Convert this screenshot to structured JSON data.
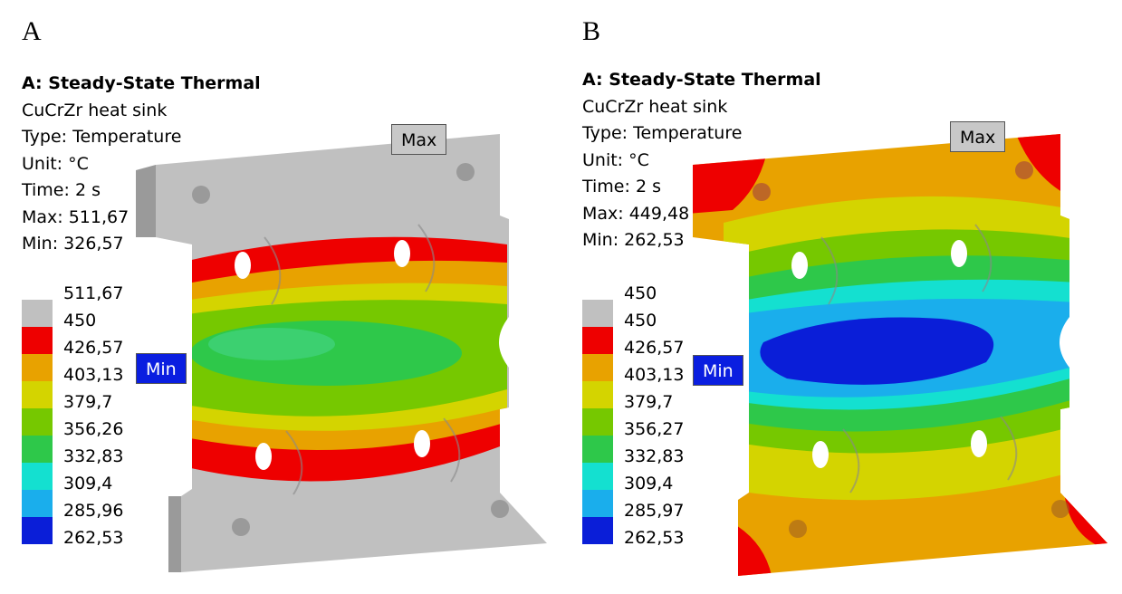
{
  "panels": [
    {
      "letter": "A",
      "title": "A: Steady-State Thermal",
      "body": "CuCrZr heat sink",
      "type": "Type: Temperature",
      "unit": "Unit: °C",
      "time": "Time: 2 s",
      "max": "Max: 511,67",
      "min": "Min: 326,57",
      "legend": [
        "511,67",
        "450",
        "426,57",
        "403,13",
        "379,7",
        "356,26",
        "332,83",
        "309,4",
        "285,96",
        "262,53"
      ],
      "max_tag": "Max",
      "min_tag": "Min"
    },
    {
      "letter": "B",
      "title": "A: Steady-State Thermal",
      "body": "CuCrZr heat sink",
      "type": "Type: Temperature",
      "unit": "Unit: °C",
      "time": "Time: 2 s",
      "max": "Max: 449,48",
      "min": "Min: 262,53",
      "legend": [
        "450",
        "450",
        "426,57",
        "403,13",
        "379,7",
        "356,27",
        "332,83",
        "309,4",
        "285,97",
        "262,53"
      ],
      "max_tag": "Max",
      "min_tag": "Min"
    }
  ],
  "legend_colors": [
    "#c0c0c0",
    "#ee0000",
    "#e8a200",
    "#d4d400",
    "#76c800",
    "#2ec84a",
    "#14e0d0",
    "#1aaeec",
    "#0a1ed8"
  ],
  "tag_colors": {
    "max": "#c8c8c8",
    "min": "#0a1ee0"
  }
}
